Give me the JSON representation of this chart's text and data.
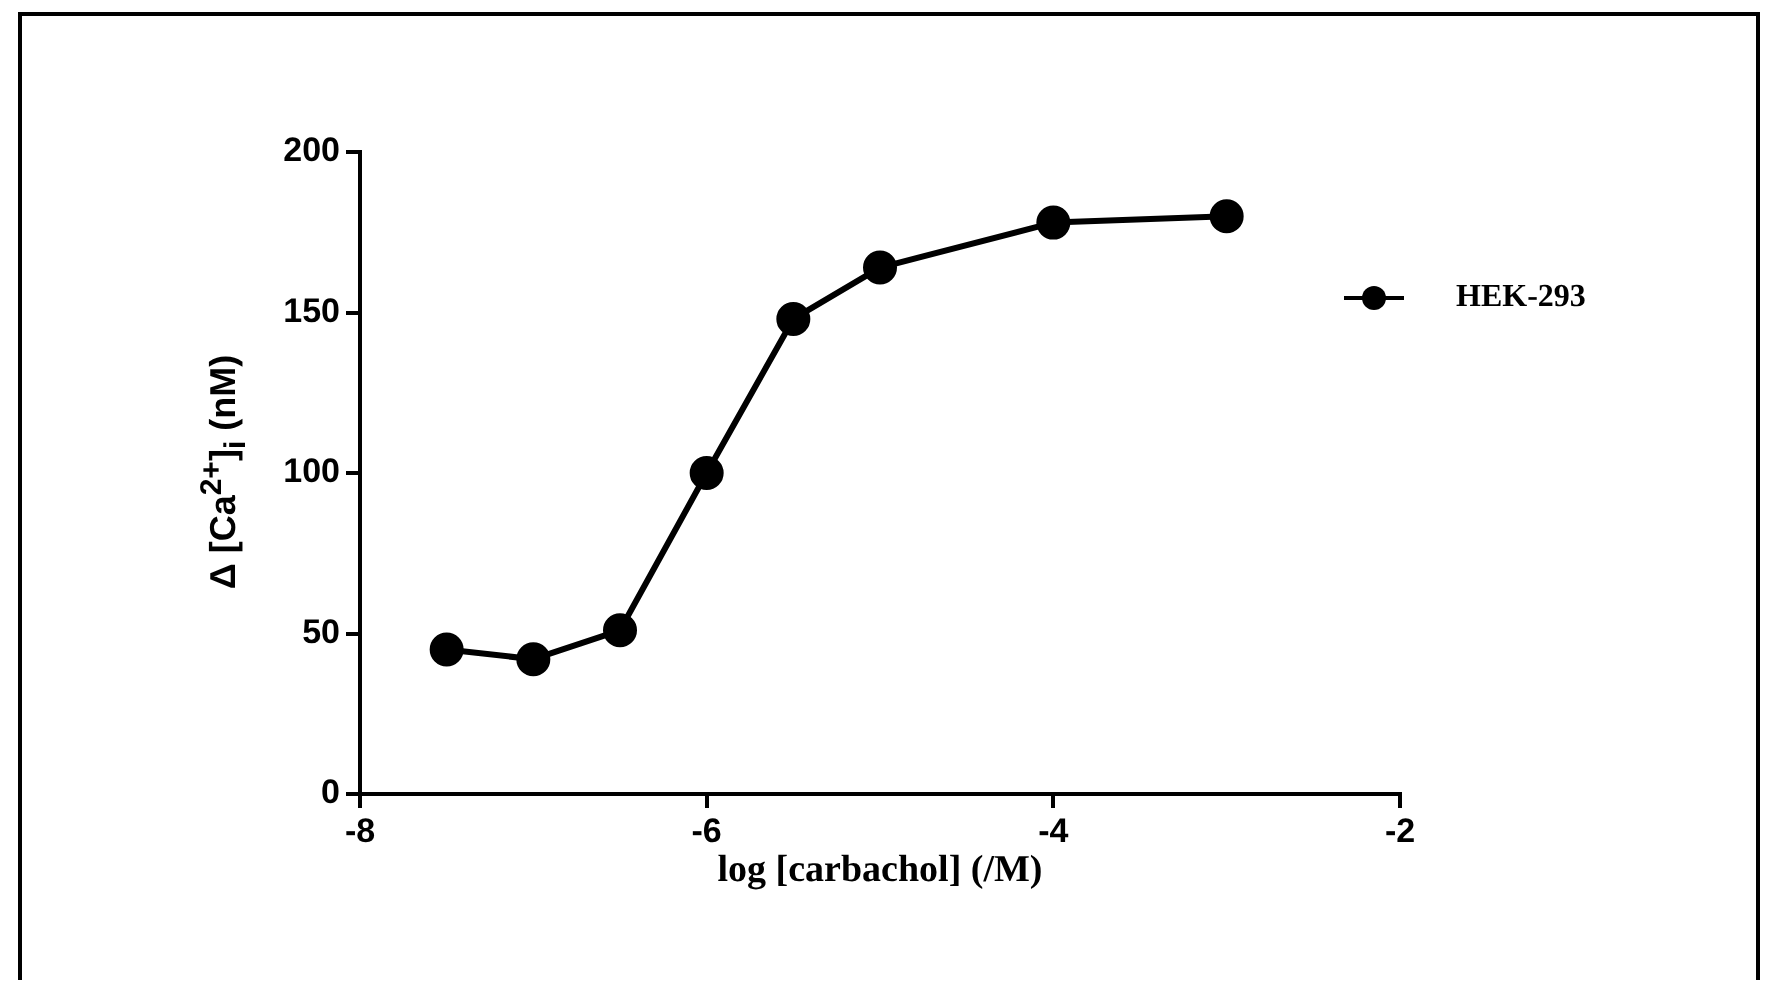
{
  "chart_data": {
    "type": "line",
    "xlabel": "log [carbachol] (/M)",
    "ylabel": "Δ [Ca$^{2+}$]$_{i}$ (nM)",
    "x": [
      -7.5,
      -7,
      -6.5,
      -6,
      -5.5,
      -5,
      -4,
      -3
    ],
    "series": [
      {
        "name": "HEK-293",
        "color": "#000000",
        "values": [
          45,
          42,
          51,
          100,
          148,
          164,
          178,
          180
        ]
      }
    ],
    "xlim": [
      -8,
      -2
    ],
    "xticks": [
      -8,
      -6,
      -4,
      -2
    ],
    "ylim": [
      0,
      200
    ],
    "yticks": [
      0,
      50,
      100,
      150,
      200
    ],
    "grid": false,
    "legend": "right",
    "marker": "circle",
    "line_style": "solid"
  }
}
